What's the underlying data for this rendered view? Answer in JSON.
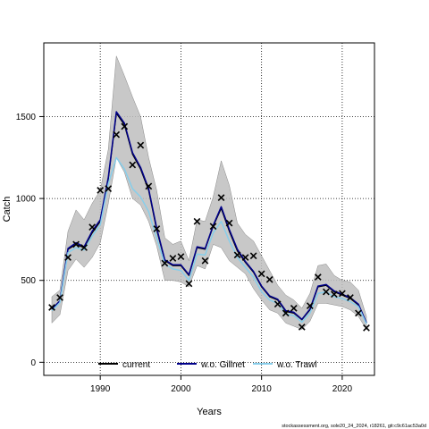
{
  "chart_data": {
    "type": "line",
    "xlabel": "Years",
    "ylabel": "Catch",
    "xlim": [
      1983,
      2024
    ],
    "ylim": [
      -80,
      1950
    ],
    "x_ticks": [
      1990,
      2000,
      2010,
      2020
    ],
    "y_ticks": [
      0,
      500,
      1000,
      1500
    ],
    "grid": "dotted",
    "legend_position": "bottom-center",
    "footer": "stockassessment.org, sole20_24_2024, r18261, git:c9c61ac53a0d",
    "colors": {
      "current": "#000000",
      "gillnet": "#00008b",
      "trawl": "#87ceeb",
      "band": "#bebebe",
      "observed": "#000000"
    },
    "years": [
      1984,
      1985,
      1986,
      1987,
      1988,
      1989,
      1990,
      1991,
      1992,
      1993,
      1994,
      1995,
      1996,
      1997,
      1998,
      1999,
      2000,
      2001,
      2002,
      2003,
      2004,
      2005,
      2006,
      2007,
      2008,
      2009,
      2010,
      2011,
      2012,
      2013,
      2014,
      2015,
      2016,
      2017,
      2018,
      2019,
      2020,
      2021,
      2022,
      2023
    ],
    "band_upper": [
      400,
      440,
      800,
      930,
      870,
      970,
      1050,
      1300,
      1870,
      1750,
      1620,
      1500,
      1250,
      1050,
      760,
      720,
      740,
      620,
      870,
      860,
      1010,
      1230,
      1080,
      850,
      780,
      740,
      650,
      560,
      470,
      410,
      380,
      330,
      420,
      590,
      600,
      530,
      500,
      490,
      440,
      280
    ],
    "band_lower": [
      240,
      290,
      560,
      630,
      580,
      640,
      730,
      970,
      1250,
      1160,
      1000,
      960,
      860,
      710,
      500,
      500,
      490,
      460,
      590,
      570,
      720,
      700,
      620,
      580,
      540,
      450,
      380,
      320,
      300,
      240,
      220,
      200,
      250,
      360,
      360,
      350,
      340,
      320,
      280,
      200
    ],
    "series": [
      {
        "name": "current",
        "values": [
          320,
          370,
          690,
          720,
          700,
          790,
          860,
          1120,
          1520,
          1450,
          1270,
          1180,
          1050,
          810,
          620,
          590,
          590,
          530,
          700,
          690,
          830,
          940,
          800,
          680,
          610,
          550,
          460,
          400,
          380,
          310,
          300,
          260,
          320,
          460,
          470,
          430,
          410,
          390,
          350,
          240
        ]
      },
      {
        "name": "w.o. Gillnet",
        "values": [
          325,
          375,
          695,
          730,
          705,
          800,
          870,
          1130,
          1530,
          1460,
          1280,
          1190,
          1060,
          820,
          625,
          595,
          595,
          535,
          705,
          695,
          835,
          950,
          810,
          690,
          615,
          555,
          465,
          405,
          385,
          315,
          305,
          262,
          325,
          465,
          475,
          435,
          415,
          395,
          355,
          242
        ]
      },
      {
        "name": "w.o. Trawl",
        "values": [
          315,
          365,
          670,
          700,
          685,
          770,
          840,
          1090,
          1250,
          1180,
          1060,
          1010,
          920,
          760,
          600,
          570,
          560,
          500,
          660,
          655,
          790,
          860,
          740,
          640,
          580,
          520,
          430,
          380,
          360,
          295,
          285,
          245,
          300,
          420,
          430,
          400,
          390,
          370,
          340,
          235
        ]
      }
    ],
    "observed": [
      [
        1984,
        335
      ],
      [
        1985,
        395
      ],
      [
        1986,
        640
      ],
      [
        1987,
        720
      ],
      [
        1988,
        700
      ],
      [
        1989,
        825
      ],
      [
        1990,
        1050
      ],
      [
        1991,
        1060
      ],
      [
        1992,
        1390
      ],
      [
        1993,
        1440
      ],
      [
        1994,
        1205
      ],
      [
        1995,
        1325
      ],
      [
        1996,
        1075
      ],
      [
        1997,
        815
      ],
      [
        1998,
        605
      ],
      [
        1999,
        635
      ],
      [
        2000,
        645
      ],
      [
        2001,
        480
      ],
      [
        2002,
        860
      ],
      [
        2003,
        620
      ],
      [
        2004,
        830
      ],
      [
        2005,
        1005
      ],
      [
        2006,
        850
      ],
      [
        2007,
        655
      ],
      [
        2008,
        640
      ],
      [
        2009,
        650
      ],
      [
        2010,
        540
      ],
      [
        2011,
        505
      ],
      [
        2012,
        355
      ],
      [
        2013,
        300
      ],
      [
        2014,
        330
      ],
      [
        2015,
        215
      ],
      [
        2016,
        345
      ],
      [
        2017,
        520
      ],
      [
        2018,
        430
      ],
      [
        2019,
        415
      ],
      [
        2020,
        420
      ],
      [
        2021,
        395
      ],
      [
        2022,
        300
      ],
      [
        2023,
        210
      ]
    ]
  }
}
